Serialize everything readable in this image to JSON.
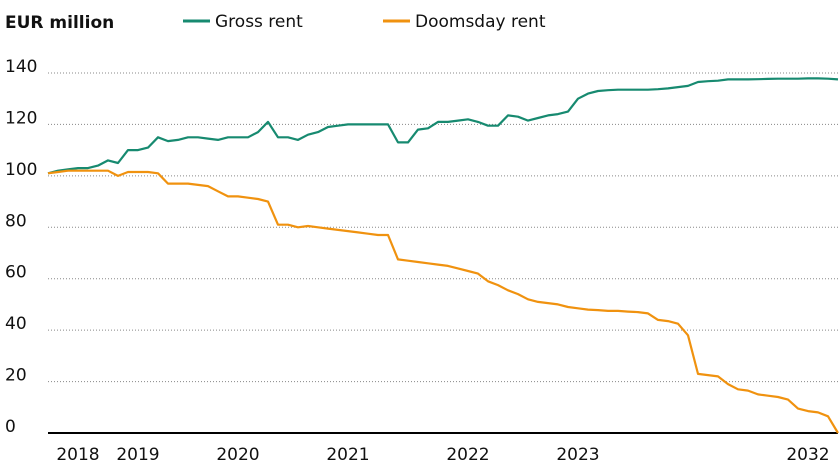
{
  "chart_data": {
    "type": "line",
    "y_label": "EUR million",
    "categories": [
      null,
      null,
      null,
      "2018",
      null,
      null,
      null,
      null,
      null,
      "2019",
      null,
      null,
      null,
      null,
      null,
      null,
      null,
      null,
      null,
      "2020",
      null,
      null,
      null,
      null,
      null,
      null,
      null,
      null,
      null,
      null,
      "2021",
      null,
      null,
      null,
      null,
      null,
      null,
      null,
      null,
      null,
      null,
      null,
      "2022",
      null,
      null,
      null,
      null,
      null,
      null,
      null,
      null,
      null,
      null,
      "2023",
      null,
      null,
      null,
      null,
      null,
      null,
      null,
      null,
      null,
      null,
      null,
      null,
      null,
      null,
      null,
      null,
      null,
      null,
      null,
      null,
      null,
      null,
      "2032",
      null,
      null,
      null
    ],
    "series": [
      {
        "name": "Gross rent",
        "color": "#178a70",
        "values": [
          101,
          102,
          102.5,
          103,
          103,
          104,
          106,
          105,
          110,
          110,
          111,
          115,
          113.5,
          114,
          115,
          115,
          114.5,
          114,
          115,
          115,
          115,
          117,
          121,
          115,
          115,
          114,
          116,
          117,
          119,
          119.5,
          120,
          120,
          120,
          120,
          120,
          113,
          113,
          118,
          118.5,
          121,
          121,
          121.5,
          122,
          121,
          119.5,
          119.5,
          123.5,
          123,
          121.5,
          122.5,
          123.5,
          124,
          125,
          130,
          132,
          133,
          133.3,
          133.5,
          133.5,
          133.5,
          133.5,
          133.7,
          134,
          134.5,
          135,
          136.5,
          136.8,
          137,
          137.5,
          137.5,
          137.5,
          137.6,
          137.7,
          137.8,
          137.8,
          137.8,
          137.9,
          137.9,
          137.8,
          137.5
        ]
      },
      {
        "name": "Doomsday rent",
        "color": "#f0920f",
        "values": [
          101,
          101.5,
          102,
          102,
          102,
          102,
          102,
          100,
          101.5,
          101.5,
          101.5,
          101,
          97,
          97,
          97,
          96.5,
          96,
          94,
          92,
          92,
          91.5,
          91,
          90,
          81,
          81,
          80,
          80.5,
          80,
          79.5,
          79,
          78.5,
          78,
          77.5,
          77,
          77,
          67.5,
          67,
          66.5,
          66,
          65.5,
          65,
          64,
          63,
          62,
          59,
          57.5,
          55.5,
          54,
          52,
          51,
          50.5,
          50,
          49,
          48.5,
          48,
          47.8,
          47.5,
          47.5,
          47.2,
          47,
          46.5,
          44,
          43.5,
          42.5,
          38,
          23,
          22.5,
          22,
          19,
          17,
          16.5,
          15,
          14.5,
          14,
          13,
          9.5,
          8.5,
          8,
          6.5,
          0
        ]
      }
    ],
    "ylim": [
      0,
      140
    ],
    "yticks": [
      0,
      20,
      40,
      60,
      80,
      100,
      120,
      140
    ],
    "grid": true
  }
}
